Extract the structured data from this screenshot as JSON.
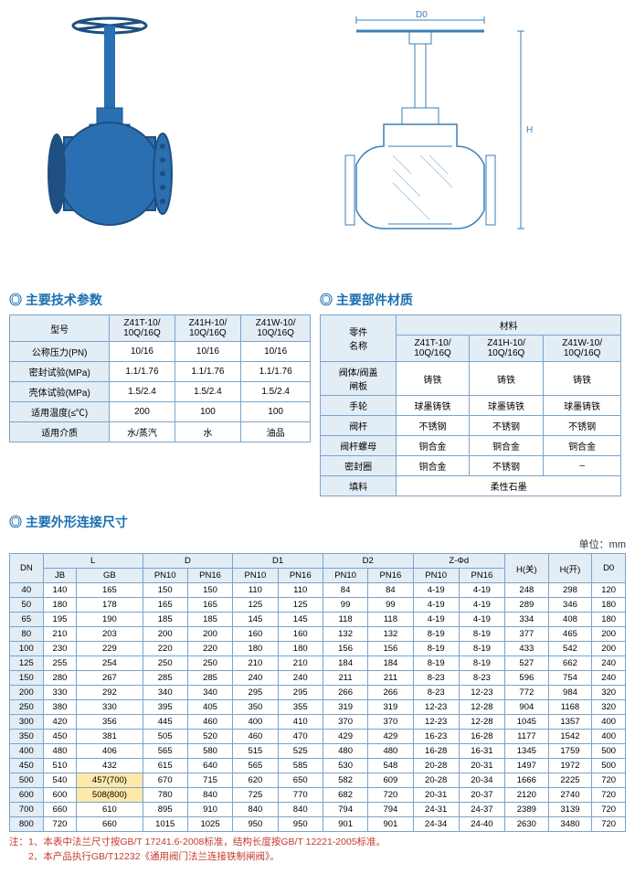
{
  "photo": {
    "alt": "蓝色闸阀产品照片"
  },
  "diagram": {
    "labels": {
      "D0": "D0",
      "H": "H"
    }
  },
  "sections": {
    "params": "主要技术参数",
    "materials": "主要部件材质",
    "dimensions": "主要外形连接尺寸"
  },
  "params_table": {
    "header": [
      "型号",
      "Z41T-10/\n10Q/16Q",
      "Z41H-10/\n10Q/16Q",
      "Z41W-10/\n10Q/16Q"
    ],
    "rows": [
      [
        "公称压力(PN)",
        "10/16",
        "10/16",
        "10/16"
      ],
      [
        "密封试验(MPa)",
        "1.1/1.76",
        "1.1/1.76",
        "1.1/1.76"
      ],
      [
        "壳体试验(MPa)",
        "1.5/2.4",
        "1.5/2.4",
        "1.5/2.4"
      ],
      [
        "适用温度(≤℃)",
        "200",
        "100",
        "100"
      ],
      [
        "适用介质",
        "水/蒸汽",
        "水",
        "油品"
      ]
    ]
  },
  "materials_table": {
    "top_header": [
      "零件\n名称",
      "材料"
    ],
    "sub_header": [
      "Z41T-10/\n10Q/16Q",
      "Z41H-10/\n10Q/16Q",
      "Z41W-10/\n10Q/16Q"
    ],
    "rows": [
      [
        "阀体/阀盖\n闸板",
        "铸铁",
        "铸铁",
        "铸铁"
      ],
      [
        "手轮",
        "球墨铸铁",
        "球墨铸铁",
        "球墨铸铁"
      ],
      [
        "阀杆",
        "不锈钢",
        "不锈钢",
        "不锈钢"
      ],
      [
        "阀杆螺母",
        "铜合金",
        "铜合金",
        "铜合金"
      ],
      [
        "密封圈",
        "铜合金",
        "不锈钢",
        "–"
      ]
    ],
    "packing_row": [
      "填料",
      "柔性石墨"
    ]
  },
  "unit_label": "单位：mm",
  "dim_table": {
    "group_header": [
      "DN",
      "L",
      "D",
      "D1",
      "D2",
      "Z-Φd",
      "H(关)",
      "H(开)",
      "D0"
    ],
    "sub_header": [
      "JB",
      "GB",
      "PN10",
      "PN16",
      "PN10",
      "PN16",
      "PN10",
      "PN16",
      "PN10",
      "PN16"
    ],
    "rows": [
      [
        "40",
        "140",
        "165",
        "150",
        "150",
        "110",
        "110",
        "84",
        "84",
        "4-19",
        "4-19",
        "248",
        "298",
        "120"
      ],
      [
        "50",
        "180",
        "178",
        "165",
        "165",
        "125",
        "125",
        "99",
        "99",
        "4-19",
        "4-19",
        "289",
        "346",
        "180"
      ],
      [
        "65",
        "195",
        "190",
        "185",
        "185",
        "145",
        "145",
        "118",
        "118",
        "4-19",
        "4-19",
        "334",
        "408",
        "180"
      ],
      [
        "80",
        "210",
        "203",
        "200",
        "200",
        "160",
        "160",
        "132",
        "132",
        "8-19",
        "8-19",
        "377",
        "465",
        "200"
      ],
      [
        "100",
        "230",
        "229",
        "220",
        "220",
        "180",
        "180",
        "156",
        "156",
        "8-19",
        "8-19",
        "433",
        "542",
        "200"
      ],
      [
        "125",
        "255",
        "254",
        "250",
        "250",
        "210",
        "210",
        "184",
        "184",
        "8-19",
        "8-19",
        "527",
        "662",
        "240"
      ],
      [
        "150",
        "280",
        "267",
        "285",
        "285",
        "240",
        "240",
        "211",
        "211",
        "8-23",
        "8-23",
        "596",
        "754",
        "240"
      ],
      [
        "200",
        "330",
        "292",
        "340",
        "340",
        "295",
        "295",
        "266",
        "266",
        "8-23",
        "12-23",
        "772",
        "984",
        "320"
      ],
      [
        "250",
        "380",
        "330",
        "395",
        "405",
        "350",
        "355",
        "319",
        "319",
        "12-23",
        "12-28",
        "904",
        "1168",
        "320"
      ],
      [
        "300",
        "420",
        "356",
        "445",
        "460",
        "400",
        "410",
        "370",
        "370",
        "12-23",
        "12-28",
        "1045",
        "1357",
        "400"
      ],
      [
        "350",
        "450",
        "381",
        "505",
        "520",
        "460",
        "470",
        "429",
        "429",
        "16-23",
        "16-28",
        "1177",
        "1542",
        "400"
      ],
      [
        "400",
        "480",
        "406",
        "565",
        "580",
        "515",
        "525",
        "480",
        "480",
        "16-28",
        "16-31",
        "1345",
        "1759",
        "500"
      ],
      [
        "450",
        "510",
        "432",
        "615",
        "640",
        "565",
        "585",
        "530",
        "548",
        "20-28",
        "20-31",
        "1497",
        "1972",
        "500"
      ],
      [
        "500",
        "540",
        "457(700)",
        "670",
        "715",
        "620",
        "650",
        "582",
        "609",
        "20-28",
        "20-34",
        "1666",
        "2225",
        "720"
      ],
      [
        "600",
        "600",
        "508(800)",
        "780",
        "840",
        "725",
        "770",
        "682",
        "720",
        "20-31",
        "20-37",
        "2120",
        "2740",
        "720"
      ],
      [
        "700",
        "660",
        "610",
        "895",
        "910",
        "840",
        "840",
        "794",
        "794",
        "24-31",
        "24-37",
        "2389",
        "3139",
        "720"
      ],
      [
        "800",
        "720",
        "660",
        "1015",
        "1025",
        "950",
        "950",
        "901",
        "901",
        "24-34",
        "24-40",
        "2630",
        "3480",
        "720"
      ]
    ],
    "highlight_cells": [
      "457(700)",
      "508(800)"
    ]
  },
  "notes": [
    "注：1、本表中法兰尺寸按GB/T 17241.6-2008标准，结构长度按GB/T 12221-2005标准。",
    "　　2、本产品执行GB/T12232《通用阀门法兰连接铁制闸阀》。"
  ],
  "colors": {
    "heading": "#1a6fb0",
    "border": "#7aa3cc",
    "header_bg": "#e3edf6",
    "note": "#c43a2e",
    "valve_blue": "#2b6fb3",
    "valve_dark": "#1e4f80",
    "highlight": "#ffe9a8"
  }
}
